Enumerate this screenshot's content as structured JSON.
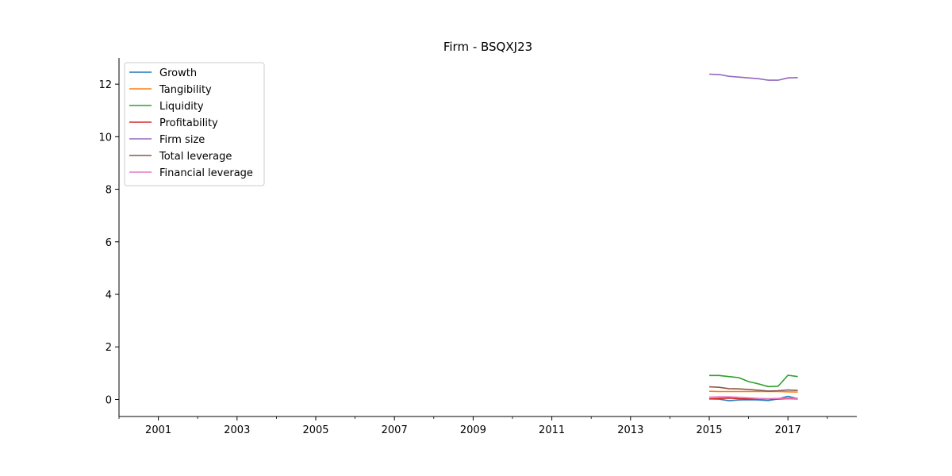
{
  "chart_data": {
    "type": "line",
    "title": "Firm - BSQXJ23",
    "xlabel": "",
    "ylabel": "",
    "x_ticks": [
      "2001",
      "2003",
      "2005",
      "2007",
      "2009",
      "2011",
      "2013",
      "2015",
      "2017"
    ],
    "y_ticks": [
      "0",
      "2",
      "4",
      "6",
      "8",
      "10",
      "12"
    ],
    "xlim": [
      2000,
      2018.75
    ],
    "ylim": [
      -0.65,
      13.0
    ],
    "grid": false,
    "legend_position": "top-left",
    "x": [
      2015.0,
      2015.25,
      2015.5,
      2015.75,
      2016.0,
      2016.25,
      2016.5,
      2016.75,
      2017.0,
      2017.25
    ],
    "series": [
      {
        "name": "Growth",
        "color": "#1f77b4",
        "values": [
          0.02,
          0.01,
          -0.05,
          -0.02,
          -0.01,
          -0.02,
          -0.04,
          0.02,
          0.12,
          0.03
        ]
      },
      {
        "name": "Tangibility",
        "color": "#ff7f0e",
        "values": [
          0.31,
          0.3,
          0.3,
          0.3,
          0.3,
          0.3,
          0.3,
          0.3,
          0.29,
          0.28
        ]
      },
      {
        "name": "Liquidity",
        "color": "#2ca02c",
        "values": [
          0.91,
          0.91,
          0.87,
          0.83,
          0.68,
          0.59,
          0.49,
          0.5,
          0.92,
          0.87
        ]
      },
      {
        "name": "Profitability",
        "color": "#d62728",
        "values": [
          0.03,
          0.04,
          0.05,
          0.03,
          0.02,
          0.03,
          0.02,
          0.01,
          0.03,
          0.02
        ]
      },
      {
        "name": "Firm size",
        "color": "#9467bd",
        "values": [
          12.38,
          12.37,
          12.3,
          12.27,
          12.24,
          12.21,
          12.15,
          12.15,
          12.24,
          12.25
        ]
      },
      {
        "name": "Total leverage",
        "color": "#8c564b",
        "values": [
          0.48,
          0.46,
          0.41,
          0.4,
          0.38,
          0.35,
          0.32,
          0.33,
          0.36,
          0.34
        ]
      },
      {
        "name": "Financial leverage",
        "color": "#e377c2",
        "values": [
          0.09,
          0.1,
          0.1,
          0.08,
          0.06,
          0.04,
          0.03,
          0.04,
          0.05,
          0.04
        ]
      }
    ]
  }
}
